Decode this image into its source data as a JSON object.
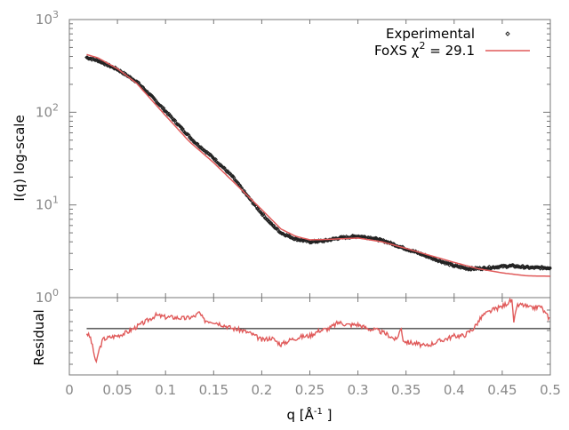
{
  "chart_data": [
    {
      "type": "line",
      "panel": "main",
      "ylabel": "I(q) log-scale",
      "yscale": "log",
      "xlim": [
        0,
        0.5
      ],
      "ylim": [
        1,
        1000
      ],
      "ytick_labels": [
        {
          "base": "10",
          "exp": "0",
          "value": 1
        },
        {
          "base": "10",
          "exp": "1",
          "value": 10
        },
        {
          "base": "10",
          "exp": "2",
          "value": 100
        },
        {
          "base": "10",
          "exp": "3",
          "value": 1000
        }
      ],
      "legend": {
        "placement": "top-right",
        "entries": [
          {
            "label": "Experimental",
            "color": "#222222",
            "marker": "diamond"
          },
          {
            "label_prefix": "FoXS χ",
            "label_sup": "2",
            "label_suffix": " = 29.1",
            "color": "#e05a5a"
          }
        ]
      },
      "series": [
        {
          "name": "Experimental",
          "color": "#222222",
          "x": [
            0.018,
            0.03,
            0.05,
            0.07,
            0.085,
            0.1,
            0.115,
            0.13,
            0.15,
            0.17,
            0.185,
            0.2,
            0.21,
            0.22,
            0.235,
            0.25,
            0.265,
            0.28,
            0.3,
            0.315,
            0.33,
            0.345,
            0.36,
            0.38,
            0.4,
            0.415,
            0.43,
            0.445,
            0.46,
            0.48,
            0.5
          ],
          "y": [
            390,
            360,
            290,
            214,
            150,
            103,
            70,
            48,
            32,
            20,
            12.5,
            8.1,
            6.2,
            5.0,
            4.3,
            4.0,
            4.1,
            4.4,
            4.6,
            4.4,
            4.0,
            3.5,
            3.1,
            2.6,
            2.2,
            2.05,
            2.07,
            2.15,
            2.2,
            2.1,
            2.1
          ]
        },
        {
          "name": "FoXS χ2 = 29.1",
          "color": "#e05a5a",
          "x": [
            0.018,
            0.03,
            0.05,
            0.07,
            0.1,
            0.125,
            0.15,
            0.175,
            0.2,
            0.22,
            0.235,
            0.25,
            0.27,
            0.3,
            0.325,
            0.35,
            0.375,
            0.4,
            0.425,
            0.45,
            0.475,
            0.5
          ],
          "y": [
            420,
            385,
            295,
            205,
            92,
            48,
            28.6,
            16,
            8.9,
            5.5,
            4.6,
            4.2,
            4.25,
            4.4,
            4.0,
            3.4,
            2.85,
            2.4,
            2.05,
            1.85,
            1.72,
            1.7
          ]
        }
      ]
    },
    {
      "type": "line",
      "panel": "residual",
      "ylabel": "Residual",
      "xlabel_prefix": "q [Å",
      "xlabel_sup": "-1",
      "xlabel_suffix": " ]",
      "xlim": [
        0,
        0.5
      ],
      "xtick_labels": [
        "0",
        "0.05",
        "0.1",
        "0.15",
        "0.2",
        "0.25",
        "0.3",
        "0.35",
        "0.4",
        "0.45",
        "0.5"
      ],
      "xticks": [
        0,
        0.05,
        0.1,
        0.15,
        0.2,
        0.25,
        0.3,
        0.35,
        0.4,
        0.45,
        0.5
      ],
      "ylim": [
        -2.5,
        1.67
      ],
      "reference_line": 0,
      "series": [
        {
          "color": "#e05a5a",
          "x": [
            0.018,
            0.022,
            0.025,
            0.028,
            0.03,
            0.035,
            0.04,
            0.05,
            0.06,
            0.07,
            0.08,
            0.09,
            0.1,
            0.11,
            0.12,
            0.13,
            0.135,
            0.14,
            0.15,
            0.16,
            0.17,
            0.18,
            0.19,
            0.2,
            0.21,
            0.22,
            0.23,
            0.24,
            0.25,
            0.26,
            0.27,
            0.28,
            0.29,
            0.3,
            0.31,
            0.32,
            0.33,
            0.34,
            0.343,
            0.345,
            0.347,
            0.35,
            0.36,
            0.37,
            0.38,
            0.39,
            0.4,
            0.41,
            0.42,
            0.43,
            0.44,
            0.45,
            0.46,
            0.462,
            0.465,
            0.47,
            0.48,
            0.49,
            0.495,
            0.5
          ],
          "y": [
            -0.24,
            -0.5,
            -1.2,
            -1.9,
            -1.3,
            -0.58,
            -0.5,
            -0.38,
            -0.2,
            0.1,
            0.4,
            0.72,
            0.62,
            0.6,
            0.55,
            0.65,
            0.86,
            0.45,
            0.38,
            0.2,
            0.0,
            -0.1,
            -0.3,
            -0.62,
            -0.5,
            -0.86,
            -0.6,
            -0.45,
            -0.38,
            -0.1,
            0.0,
            0.34,
            0.2,
            0.22,
            0.0,
            -0.1,
            -0.3,
            -0.62,
            -0.2,
            0.0,
            -0.6,
            -0.72,
            -0.8,
            -0.96,
            -0.75,
            -0.58,
            -0.4,
            -0.38,
            0.0,
            0.72,
            1.0,
            1.2,
            1.54,
            0.25,
            1.2,
            1.3,
            1.1,
            1.2,
            0.8,
            0.5
          ]
        }
      ]
    }
  ]
}
